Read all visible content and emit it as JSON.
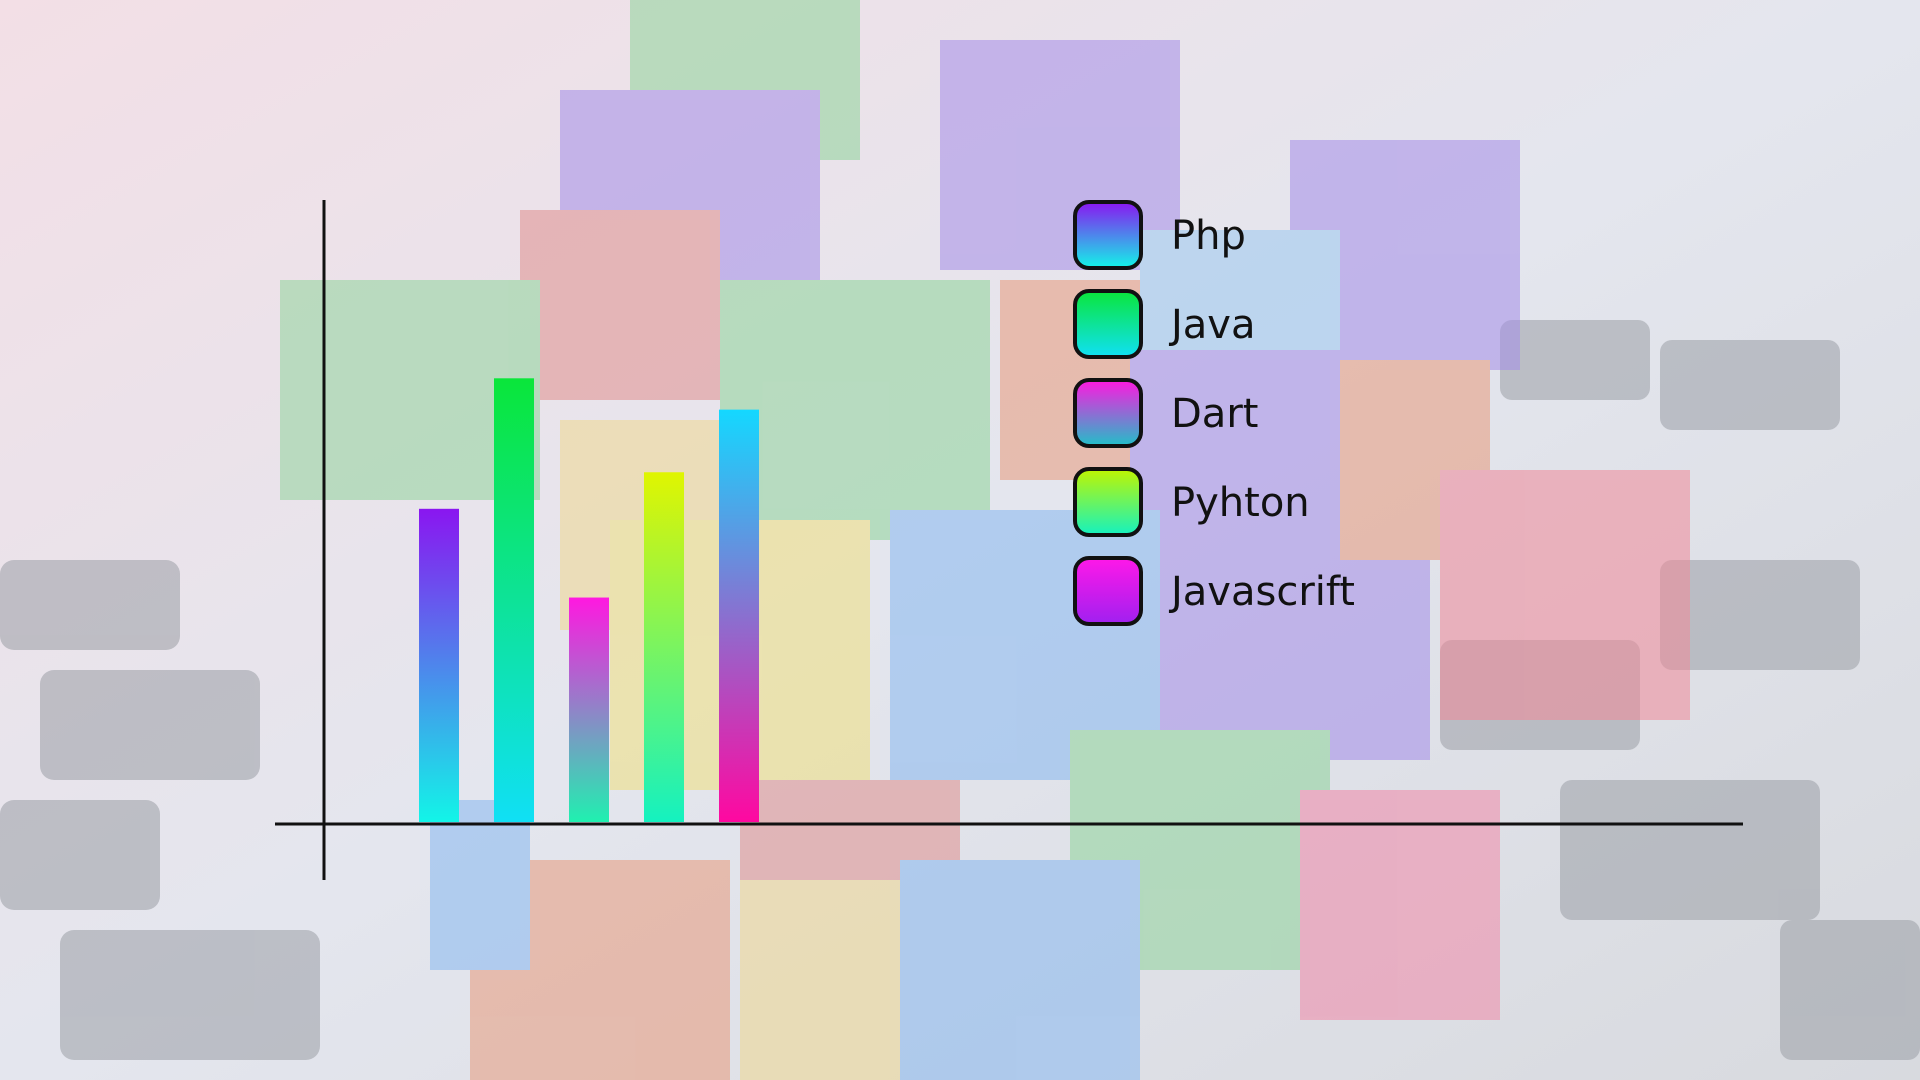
{
  "chart_data": {
    "type": "bar",
    "title": "",
    "xlabel": "",
    "ylabel": "",
    "ylim": [
      0,
      100
    ],
    "grid": false,
    "legend_position": "top-right",
    "categories": [
      "Php",
      "Java",
      "Dart",
      "Pyhton",
      "Javascrift"
    ],
    "values": [
      60,
      85,
      43,
      67,
      79
    ],
    "series_gradients": [
      {
        "name": "Php",
        "from": "#8a16f0",
        "to": "#12f5e8"
      },
      {
        "name": "Java",
        "from": "#0ae63a",
        "to": "#10e0f5"
      },
      {
        "name": "Dart",
        "from": "#ff18e0",
        "to": "#20f0b0"
      },
      {
        "name": "Pyhton",
        "from": "#e0f500",
        "to": "#14f2c0"
      },
      {
        "name": "Javascrift",
        "from": "#14d8ff",
        "to": "#ff08a0"
      }
    ]
  },
  "legend": {
    "items": [
      {
        "label": "Php",
        "from": "#8a16f0",
        "to": "#12f5e8"
      },
      {
        "label": "Java",
        "from": "#0ae63a",
        "to": "#10e0f5"
      },
      {
        "label": "Dart",
        "from": "#ff18e0",
        "to": "#20c0c8"
      },
      {
        "label": "Pyhton",
        "from": "#c0f500",
        "to": "#14f2c0"
      },
      {
        "label": "Javascrift",
        "from": "#ff18e8",
        "to": "#a020f0"
      }
    ]
  },
  "background": {
    "description_icon": "code-cubes-photo"
  }
}
